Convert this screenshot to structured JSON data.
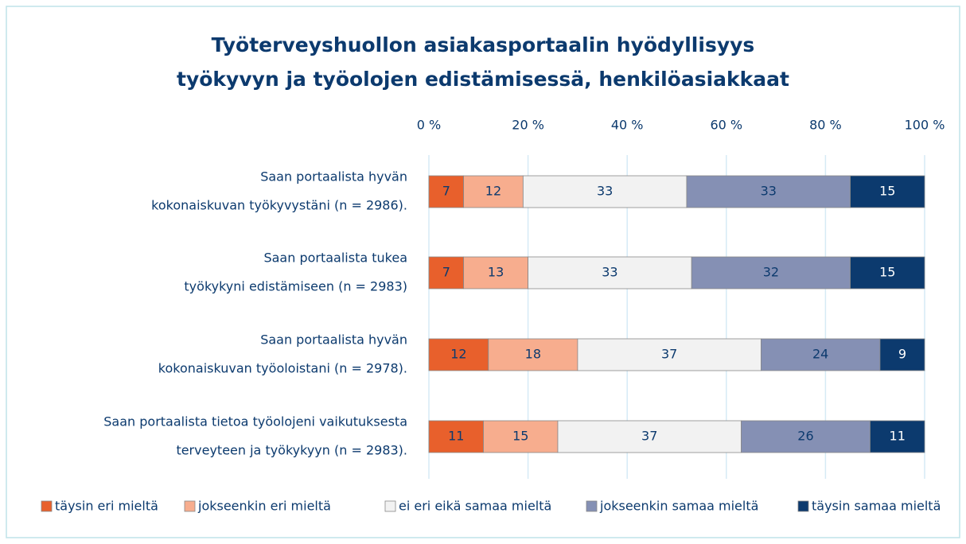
{
  "chart_data": {
    "type": "stacked_bar_horizontal",
    "title": [
      "Työterveyshuollon asiakasportaalin hyödyllisyys",
      "työkyvyn ja työolojen edistämisessä, henkilöasiakkaat"
    ],
    "categories": [
      [
        "Saan portaalista hyvän",
        "kokonaiskuvan työkyvystäni (n = 2986)."
      ],
      [
        "Saan portaalista tukea",
        "työkykyni edistämiseen (n = 2983)"
      ],
      [
        "Saan portaalista hyvän",
        "kokonaiskuvan työoloistani (n = 2978)."
      ],
      [
        "Saan portaalista tietoa työolojeni vaikutuksesta",
        "terveyteen ja työkykyyn (n = 2983)."
      ]
    ],
    "series": [
      {
        "name": "täysin eri mieltä",
        "color": "#e8602c",
        "values": [
          7,
          7,
          12,
          11
        ]
      },
      {
        "name": "jokseenkin eri mieltä",
        "color": "#f7ad8e",
        "values": [
          12,
          13,
          18,
          15
        ]
      },
      {
        "name": "ei eri eikä samaa mieltä",
        "color": "#f2f2f2",
        "values": [
          33,
          33,
          37,
          37
        ]
      },
      {
        "name": "jokseenkin samaa mieltä",
        "color": "#8590b4",
        "values": [
          33,
          32,
          24,
          26
        ]
      },
      {
        "name": "täysin samaa mieltä",
        "color": "#0c3a6e",
        "values": [
          15,
          15,
          9,
          11
        ]
      }
    ],
    "xlim": [
      0,
      100
    ],
    "xticks": [
      {
        "value": 0,
        "label": "0 %"
      },
      {
        "value": 20,
        "label": "20 %"
      },
      {
        "value": 40,
        "label": "40 %"
      },
      {
        "value": 60,
        "label": "60 %"
      },
      {
        "value": 80,
        "label": "80 %"
      },
      {
        "value": 100,
        "label": "100 %"
      }
    ],
    "grid": true,
    "legend": "bottom"
  }
}
